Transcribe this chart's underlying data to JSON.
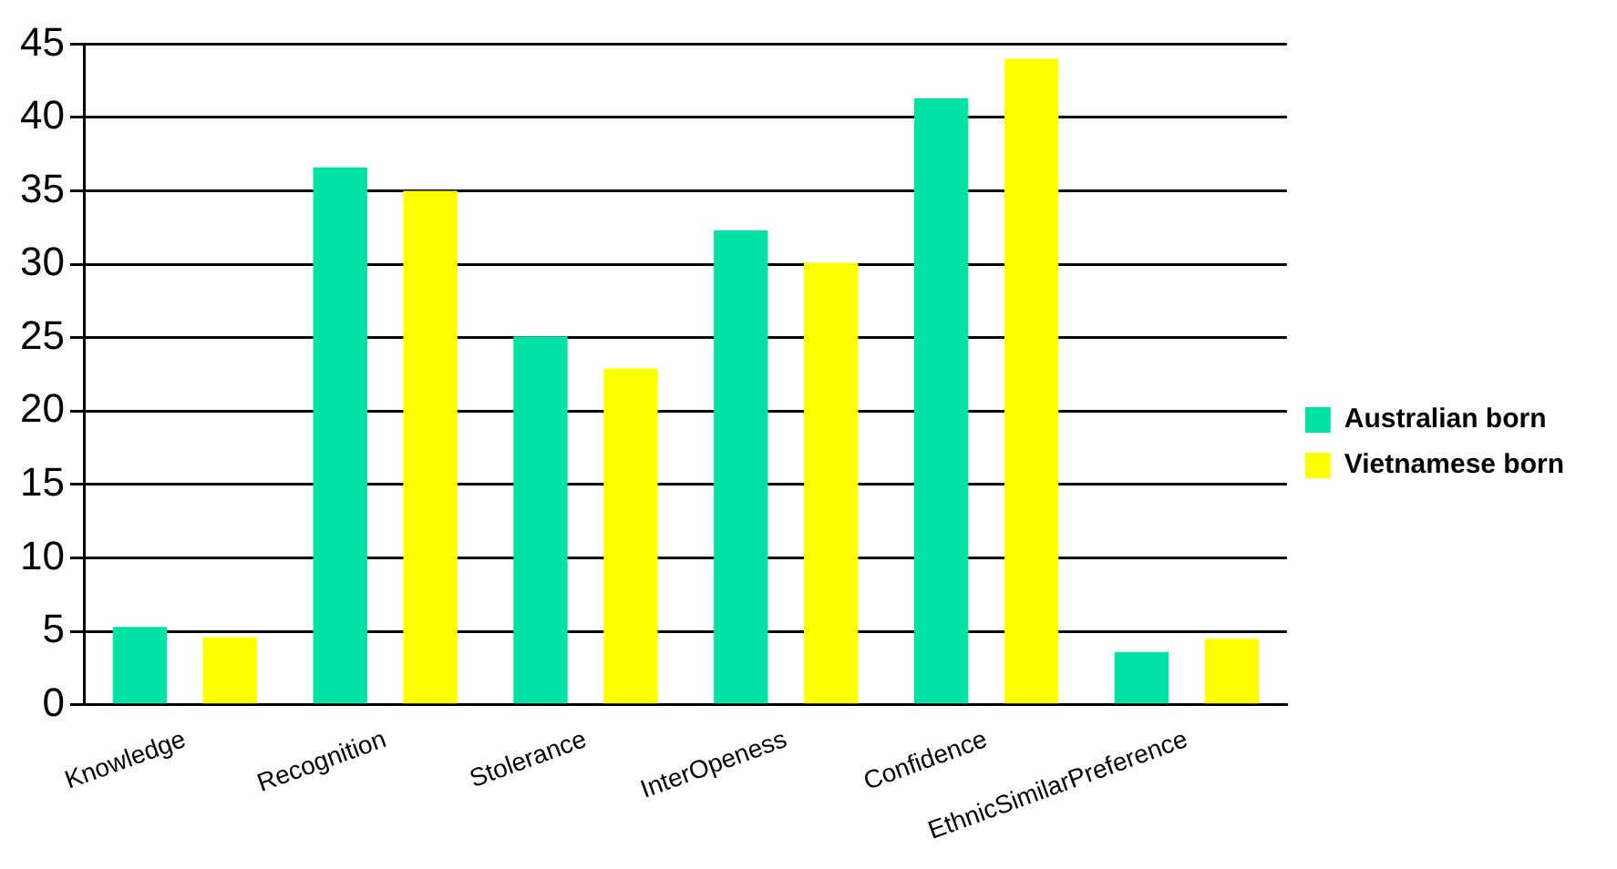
{
  "chart_data": {
    "type": "bar",
    "categories": [
      "Knowledge",
      "Recognition",
      "Stolerance",
      "InterOpeness",
      "Confidence",
      "EthnicSimilarPreference"
    ],
    "series": [
      {
        "name": "Australian born",
        "color": "#00e3a5",
        "values": [
          5.3,
          36.6,
          25.1,
          32.3,
          41.3,
          3.6
        ]
      },
      {
        "name": "Vietnamese born",
        "color": "#ffff00",
        "values": [
          4.6,
          35.0,
          22.9,
          30.1,
          44.0,
          4.5
        ]
      }
    ],
    "ylim": [
      0,
      45
    ],
    "yticks": [
      0,
      5,
      10,
      15,
      20,
      25,
      30,
      35,
      40,
      45
    ],
    "grid": "y",
    "legend": "right"
  }
}
